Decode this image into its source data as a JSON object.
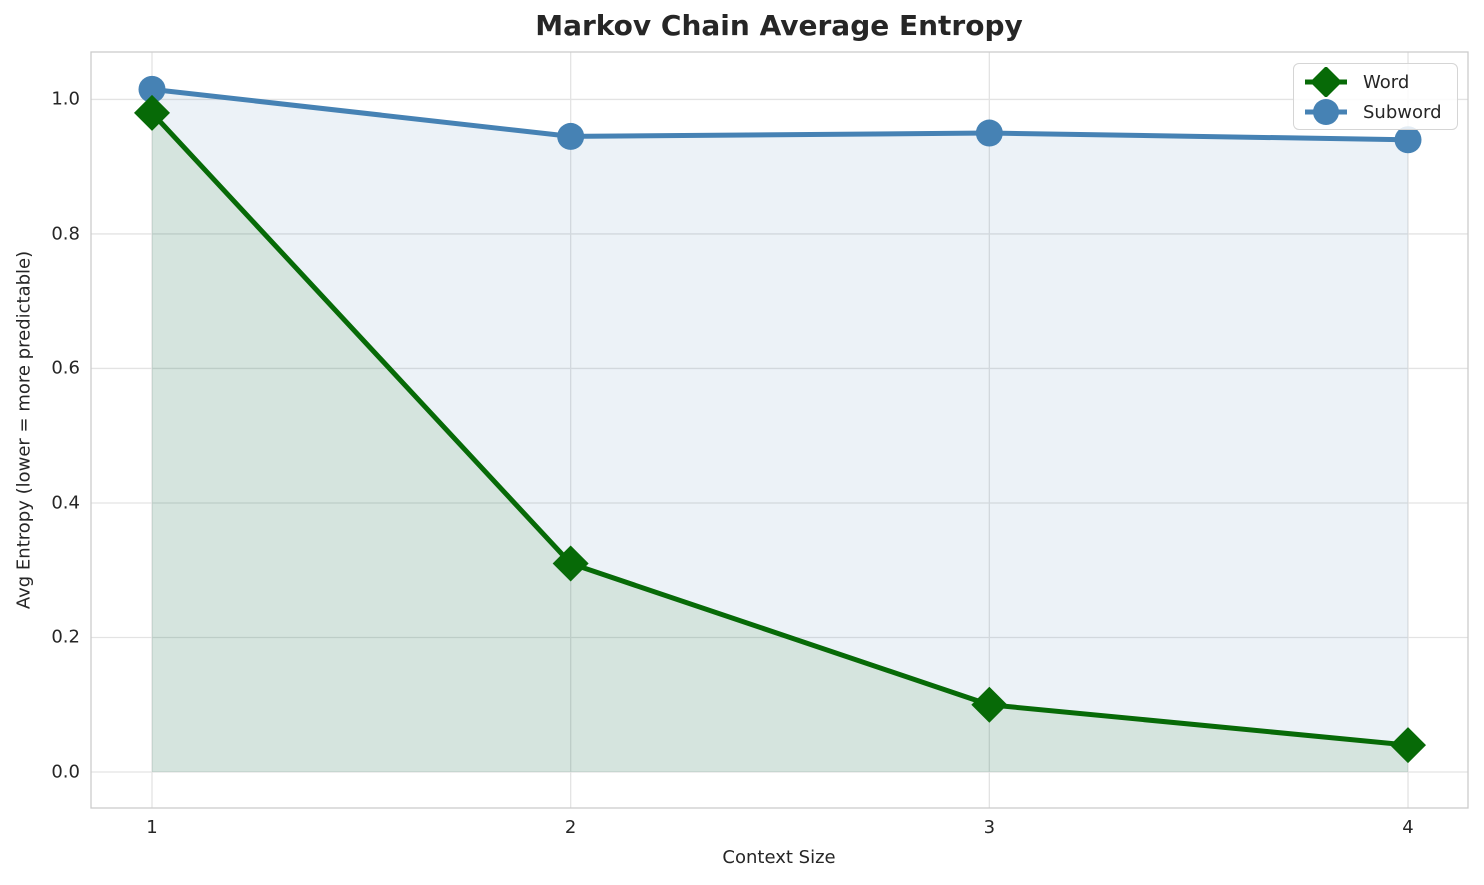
{
  "chart_data": {
    "type": "line",
    "title": "Markov Chain Average Entropy",
    "xlabel": "Context Size",
    "ylabel": "Avg Entropy (lower = more predictable)",
    "x": [
      1,
      2,
      3,
      4
    ],
    "series": [
      {
        "name": "Word",
        "values": [
          0.98,
          0.31,
          0.1,
          0.04
        ],
        "color": "#076a07",
        "marker": "diamond",
        "area_fill": true,
        "fill_alpha": 0.1
      },
      {
        "name": "Subword",
        "values": [
          1.015,
          0.945,
          0.95,
          0.94
        ],
        "color": "#4682b4",
        "marker": "circle",
        "area_fill": true,
        "fill_alpha": 0.1
      }
    ],
    "xticks": [
      "1",
      "2",
      "3",
      "4"
    ],
    "xtick_values": [
      1,
      2,
      3,
      4
    ],
    "yticks": [
      "0.0",
      "0.2",
      "0.4",
      "0.6",
      "0.8",
      "1.0"
    ],
    "ytick_values": [
      0.0,
      0.2,
      0.4,
      0.6,
      0.8,
      1.0
    ],
    "xlim": [
      0.8543,
      4.1433
    ],
    "ylim": [
      -0.0535,
      1.0705
    ],
    "grid": true,
    "legend_position": "top-right",
    "legend_entries": [
      "Word",
      "Subword"
    ],
    "colors": {
      "grid": "#e3e3e3",
      "spine": "#cccccc",
      "text": "#262626",
      "background": "#ffffff"
    }
  }
}
